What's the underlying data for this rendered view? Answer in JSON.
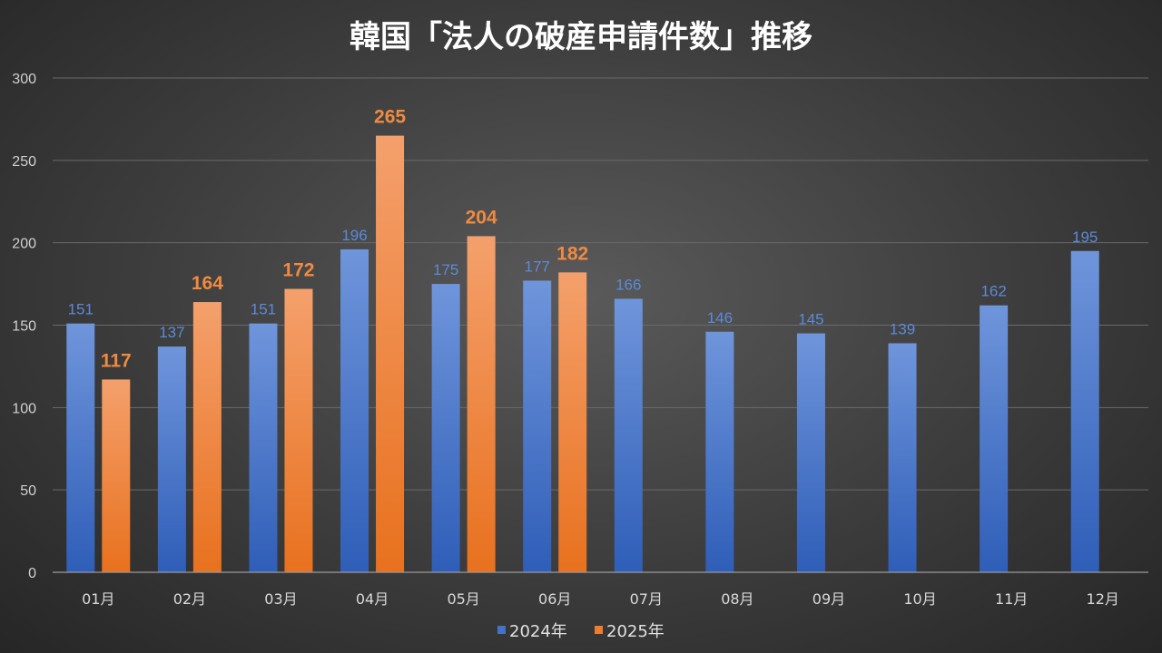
{
  "chart_data": {
    "type": "bar",
    "title": "韓国「法人の破産申請件数」推移",
    "categories": [
      "01月",
      "02月",
      "03月",
      "04月",
      "05月",
      "06月",
      "07月",
      "08月",
      "09月",
      "10月",
      "11月",
      "12月"
    ],
    "series": [
      {
        "name": "2024年",
        "values": [
          151,
          137,
          151,
          196,
          175,
          177,
          166,
          146,
          145,
          139,
          162,
          195
        ],
        "color": "#4472c4"
      },
      {
        "name": "2025年",
        "values": [
          117,
          164,
          172,
          265,
          204,
          182,
          null,
          null,
          null,
          null,
          null,
          null
        ],
        "color": "#ed7d31"
      }
    ],
    "ylim": [
      0,
      300
    ],
    "yticks": [
      0,
      50,
      100,
      150,
      200,
      250,
      300
    ],
    "grid": true,
    "legend": "bottom"
  }
}
